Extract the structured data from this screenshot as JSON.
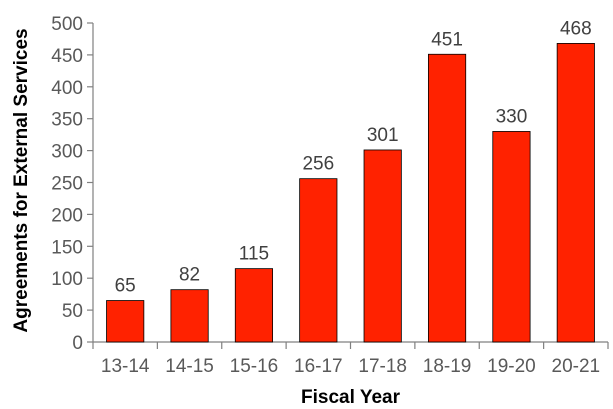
{
  "chart_data": {
    "type": "bar",
    "categories": [
      "13-14",
      "14-15",
      "15-16",
      "16-17",
      "17-18",
      "18-19",
      "19-20",
      "20-21"
    ],
    "values": [
      65,
      82,
      115,
      256,
      301,
      451,
      330,
      468
    ],
    "data_labels": [
      "65",
      "82",
      "115",
      "256",
      "301",
      "451",
      "330",
      "468"
    ],
    "title": "",
    "xlabel": "Fiscal Year",
    "ylabel": "Agreements for External Services",
    "ylim": [
      0,
      500
    ],
    "yticks": [
      0,
      50,
      100,
      150,
      200,
      250,
      300,
      350,
      400,
      450,
      500
    ],
    "grid": false,
    "legend": "none",
    "colors": {
      "bar_fill": "#FF2200",
      "bar_stroke": "#000000",
      "axis": "#808080",
      "tick_text": "#595959",
      "label_text": "#404040"
    }
  }
}
